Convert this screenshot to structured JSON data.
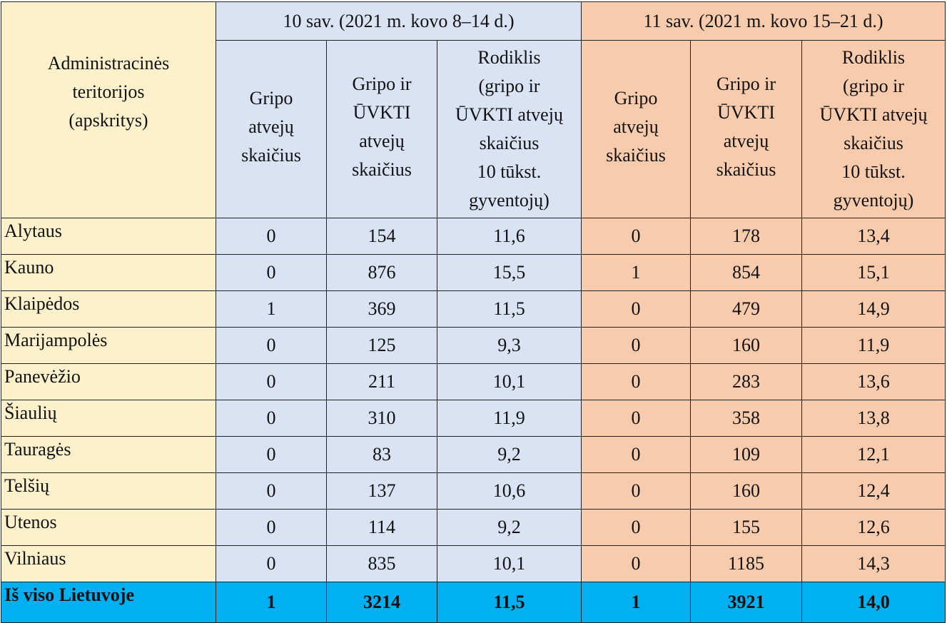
{
  "header": {
    "region_label_lines": [
      "Administracinės",
      "teritorijos",
      "(apskritys)"
    ],
    "week10_label": "10 sav. (2021 m. kovo 8–14 d.)",
    "week11_label": "11 sav. (2021 m. kovo 15–21 d.)",
    "col_flu_lines": [
      "Gripo",
      "atvejų",
      "skaičius"
    ],
    "col_flu_arvi_lines": [
      "Gripo ir",
      "ŪVKTI",
      "atvejų",
      "skaičius"
    ],
    "col_rate_lines": [
      "Rodiklis",
      "(gripo ir",
      "ŪVKTI atvejų",
      "skaičius",
      "10 tūkst.",
      "gyventojų)"
    ]
  },
  "rows": [
    {
      "region": "Alytaus",
      "w10_flu": "0",
      "w10_total": "154",
      "w10_rate": "11,6",
      "w11_flu": "0",
      "w11_total": "178",
      "w11_rate": "13,4"
    },
    {
      "region": "Kauno",
      "w10_flu": "0",
      "w10_total": "876",
      "w10_rate": "15,5",
      "w11_flu": "1",
      "w11_total": "854",
      "w11_rate": "15,1"
    },
    {
      "region": "Klaipėdos",
      "w10_flu": "1",
      "w10_total": "369",
      "w10_rate": "11,5",
      "w11_flu": "0",
      "w11_total": "479",
      "w11_rate": "14,9"
    },
    {
      "region": "Marijampolės",
      "w10_flu": "0",
      "w10_total": "125",
      "w10_rate": "9,3",
      "w11_flu": "0",
      "w11_total": "160",
      "w11_rate": "11,9"
    },
    {
      "region": "Panevėžio",
      "w10_flu": "0",
      "w10_total": "211",
      "w10_rate": "10,1",
      "w11_flu": "0",
      "w11_total": "283",
      "w11_rate": "13,6"
    },
    {
      "region": "Šiaulių",
      "w10_flu": "0",
      "w10_total": "310",
      "w10_rate": "11,9",
      "w11_flu": "0",
      "w11_total": "358",
      "w11_rate": "13,8"
    },
    {
      "region": "Tauragės",
      "w10_flu": "0",
      "w10_total": "83",
      "w10_rate": "9,2",
      "w11_flu": "0",
      "w11_total": "109",
      "w11_rate": "12,1"
    },
    {
      "region": "Telšių",
      "w10_flu": "0",
      "w10_total": "137",
      "w10_rate": "10,6",
      "w11_flu": "0",
      "w11_total": "160",
      "w11_rate": "12,4"
    },
    {
      "region": "Utenos",
      "w10_flu": "0",
      "w10_total": "114",
      "w10_rate": "9,2",
      "w11_flu": "0",
      "w11_total": "155",
      "w11_rate": "12,6"
    },
    {
      "region": "Vilniaus",
      "w10_flu": "0",
      "w10_total": "835",
      "w10_rate": "10,1",
      "w11_flu": "0",
      "w11_total": "1185",
      "w11_rate": "14,3"
    }
  ],
  "total": {
    "region": "Iš viso Lietuvoje",
    "w10_flu": "1",
    "w10_total": "3214",
    "w10_rate": "11,5",
    "w11_flu": "1",
    "w11_total": "3921",
    "w11_rate": "14,0"
  },
  "colors": {
    "region_bg": "#fdf1cc",
    "week10_bg": "#dae3f3",
    "week11_bg": "#f8cbad",
    "total_bg": "#00b0f0"
  }
}
